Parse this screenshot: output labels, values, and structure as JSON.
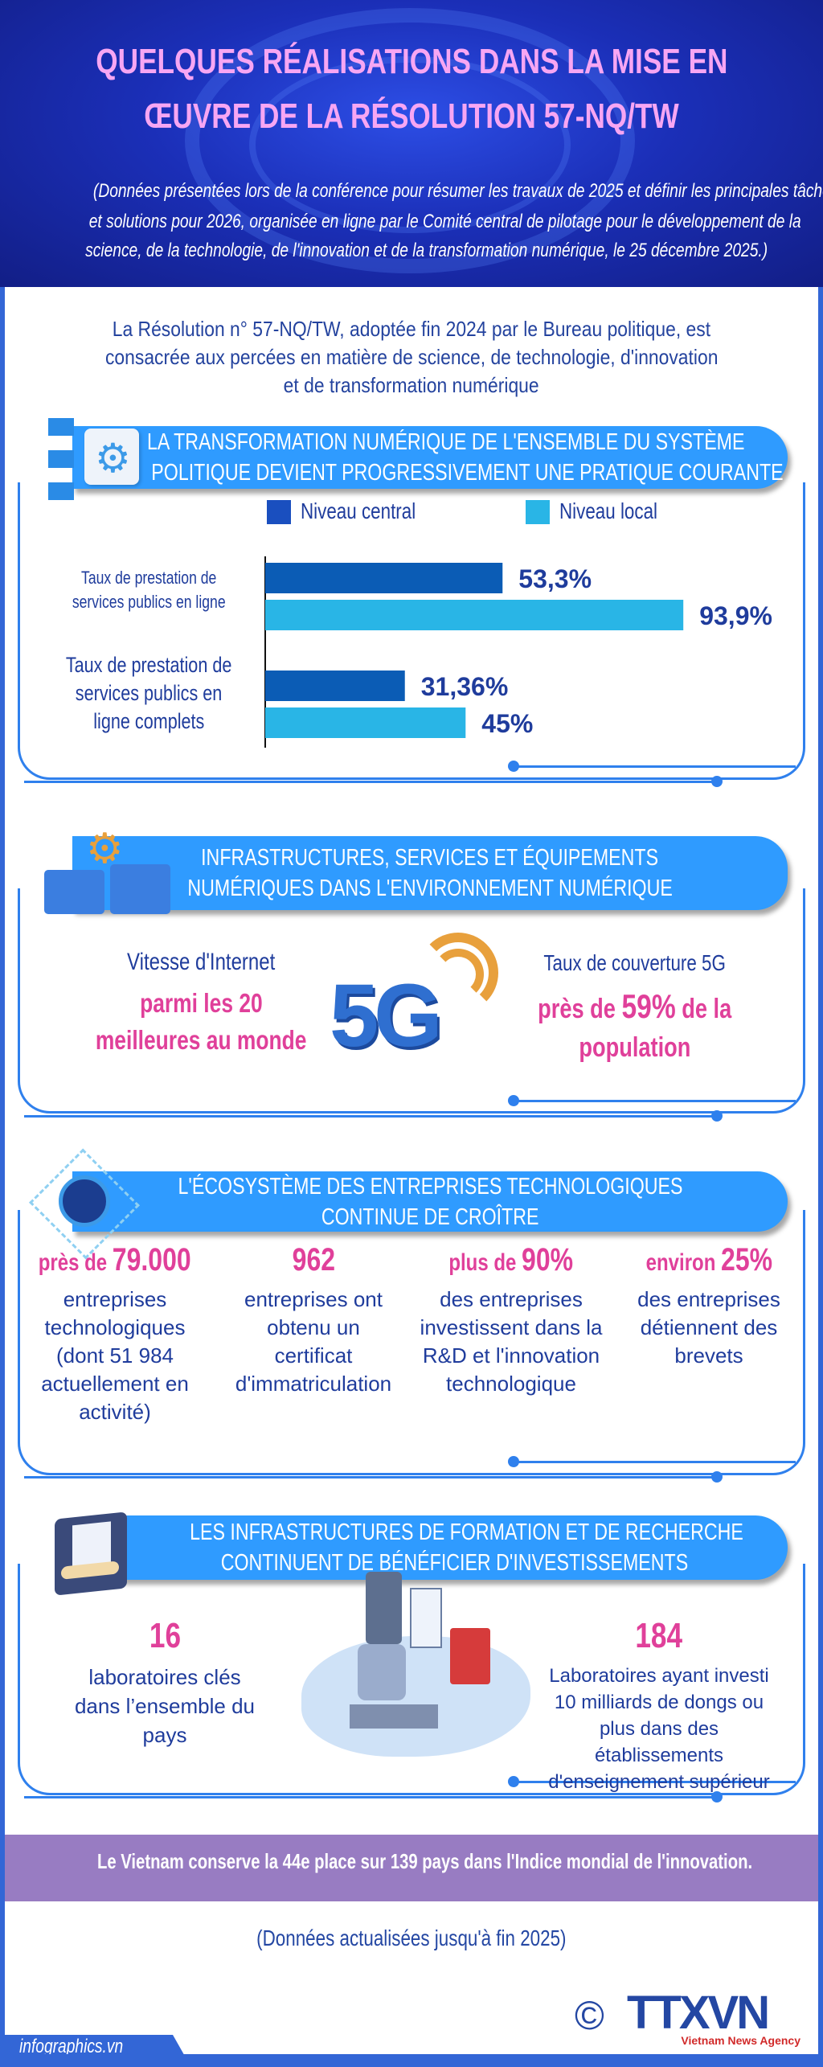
{
  "header": {
    "title_lines": [
      "QUELQUES RÉALISATIONS DANS LA MISE EN",
      "ŒUVRE DE LA RÉSOLUTION 57-NQ/TW"
    ],
    "subtitle_lines": [
      "(Données présentées lors de la conférence pour résumer les travaux de 2025 et définir les principales tâches",
      "et solutions pour  2026, organisée en ligne  par le Comité central de pilotage pour le développement de la",
      "science, de la technologie, de l'innovation et de la transformation numérique, le 25 décembre 2025.)"
    ]
  },
  "intro": {
    "lines": [
      "La Résolution n° 57-NQ/TW, adoptée fin 2024 par le Bureau politique, est",
      "consacrée aux percées en matière de science, de technologie, d'innovation",
      "et de transformation numérique"
    ]
  },
  "section1": {
    "banner_lines": [
      "LA TRANSFORMATION NUMÉRIQUE DE L'ENSEMBLE DU SYSTÈME",
      "POLITIQUE DEVIENT PROGRESSIVEMENT UNE PRATIQUE COURANTE"
    ],
    "icon": "gears-icon"
  },
  "chart_data": {
    "type": "bar",
    "orientation": "horizontal",
    "categories": [
      "Taux de prestation de services publics en ligne",
      "Taux de prestation de services publics en ligne complets"
    ],
    "category_label_lines": [
      [
        "Taux de prestation de",
        "services publics en ligne"
      ],
      [
        "Taux de prestation de",
        "services publics en",
        "ligne complets"
      ]
    ],
    "series": [
      {
        "name": "Niveau central",
        "values": [
          53.3,
          31.36
        ],
        "labels": [
          "53,3%",
          "31,36%"
        ],
        "color": "#0b5cb5"
      },
      {
        "name": "Niveau local",
        "values": [
          93.9,
          45
        ],
        "labels": [
          "93,9%",
          "45%"
        ],
        "color": "#29b5e6"
      }
    ],
    "unit": "%",
    "legend": "top",
    "grid": false
  },
  "section2": {
    "banner_lines": [
      "INFRASTRUCTURES, SERVICES ET ÉQUIPEMENTS",
      "NUMÉRIQUES DANS L'ENVIRONNEMENT NUMÉRIQUE"
    ],
    "icon": "servers-icon",
    "left": {
      "label": "Vitesse d'Internet",
      "highlight_lines": [
        "parmi les 20",
        "meilleures au monde"
      ]
    },
    "center": {
      "badge": "5G",
      "icon": "5g-signal-icon"
    },
    "right": {
      "label": "Taux de couverture 5G",
      "prefix": "près de ",
      "value": "59%",
      "suffix": " de la",
      "line2": "population"
    }
  },
  "section3": {
    "banner_lines": [
      "L'ÉCOSYSTÈME DES ENTREPRISES TECHNOLOGIQUES",
      "CONTINUE DE CROÎTRE"
    ],
    "icon": "ecosystem-icon",
    "stats": [
      {
        "prefix": "près de ",
        "value": "79.000",
        "text": "entreprises technologiques (dont 51 984 actuellement en activité)"
      },
      {
        "prefix": "",
        "value": "962",
        "text": "entreprises ont obtenu un certificat d'immatriculation"
      },
      {
        "prefix": "plus de ",
        "value": "90%",
        "text": "des entreprises investissent dans la R&D et l'innovation technologique"
      },
      {
        "prefix": "environ ",
        "value": "25%",
        "text": "des entreprises détiennent des brevets"
      }
    ]
  },
  "section4": {
    "banner_lines": [
      "LES INFRASTRUCTURES DE FORMATION ET DE RECHERCHE",
      "CONTINUENT DE BÉNÉFICIER D'INVESTISSEMENTS"
    ],
    "icon": "lab-tools-icon",
    "left": {
      "value": "16",
      "text": "laboratoires clés dans l’ensemble du pays"
    },
    "right": {
      "value": "184",
      "text": "Laboratoires ayant investi 10 milliards de dongs ou plus dans des établissements d'enseignement supérieur"
    },
    "illustration": "laboratory-illustration"
  },
  "highlight": {
    "text": "Le Vietnam conserve la 44e place sur 139 pays dans l'Indice mondial de l'innovation.",
    "color": "#987cc2"
  },
  "footer": {
    "note": "(Données actualisées jusqu'à fin 2025)",
    "copyright": "©",
    "logo": "TTXVN",
    "logo_sub": "Vietnam News Agency",
    "site": "infographics.vn"
  },
  "colors": {
    "accent": "#2f9bff",
    "pink": "#e0409a",
    "text": "#1f3c9c"
  }
}
